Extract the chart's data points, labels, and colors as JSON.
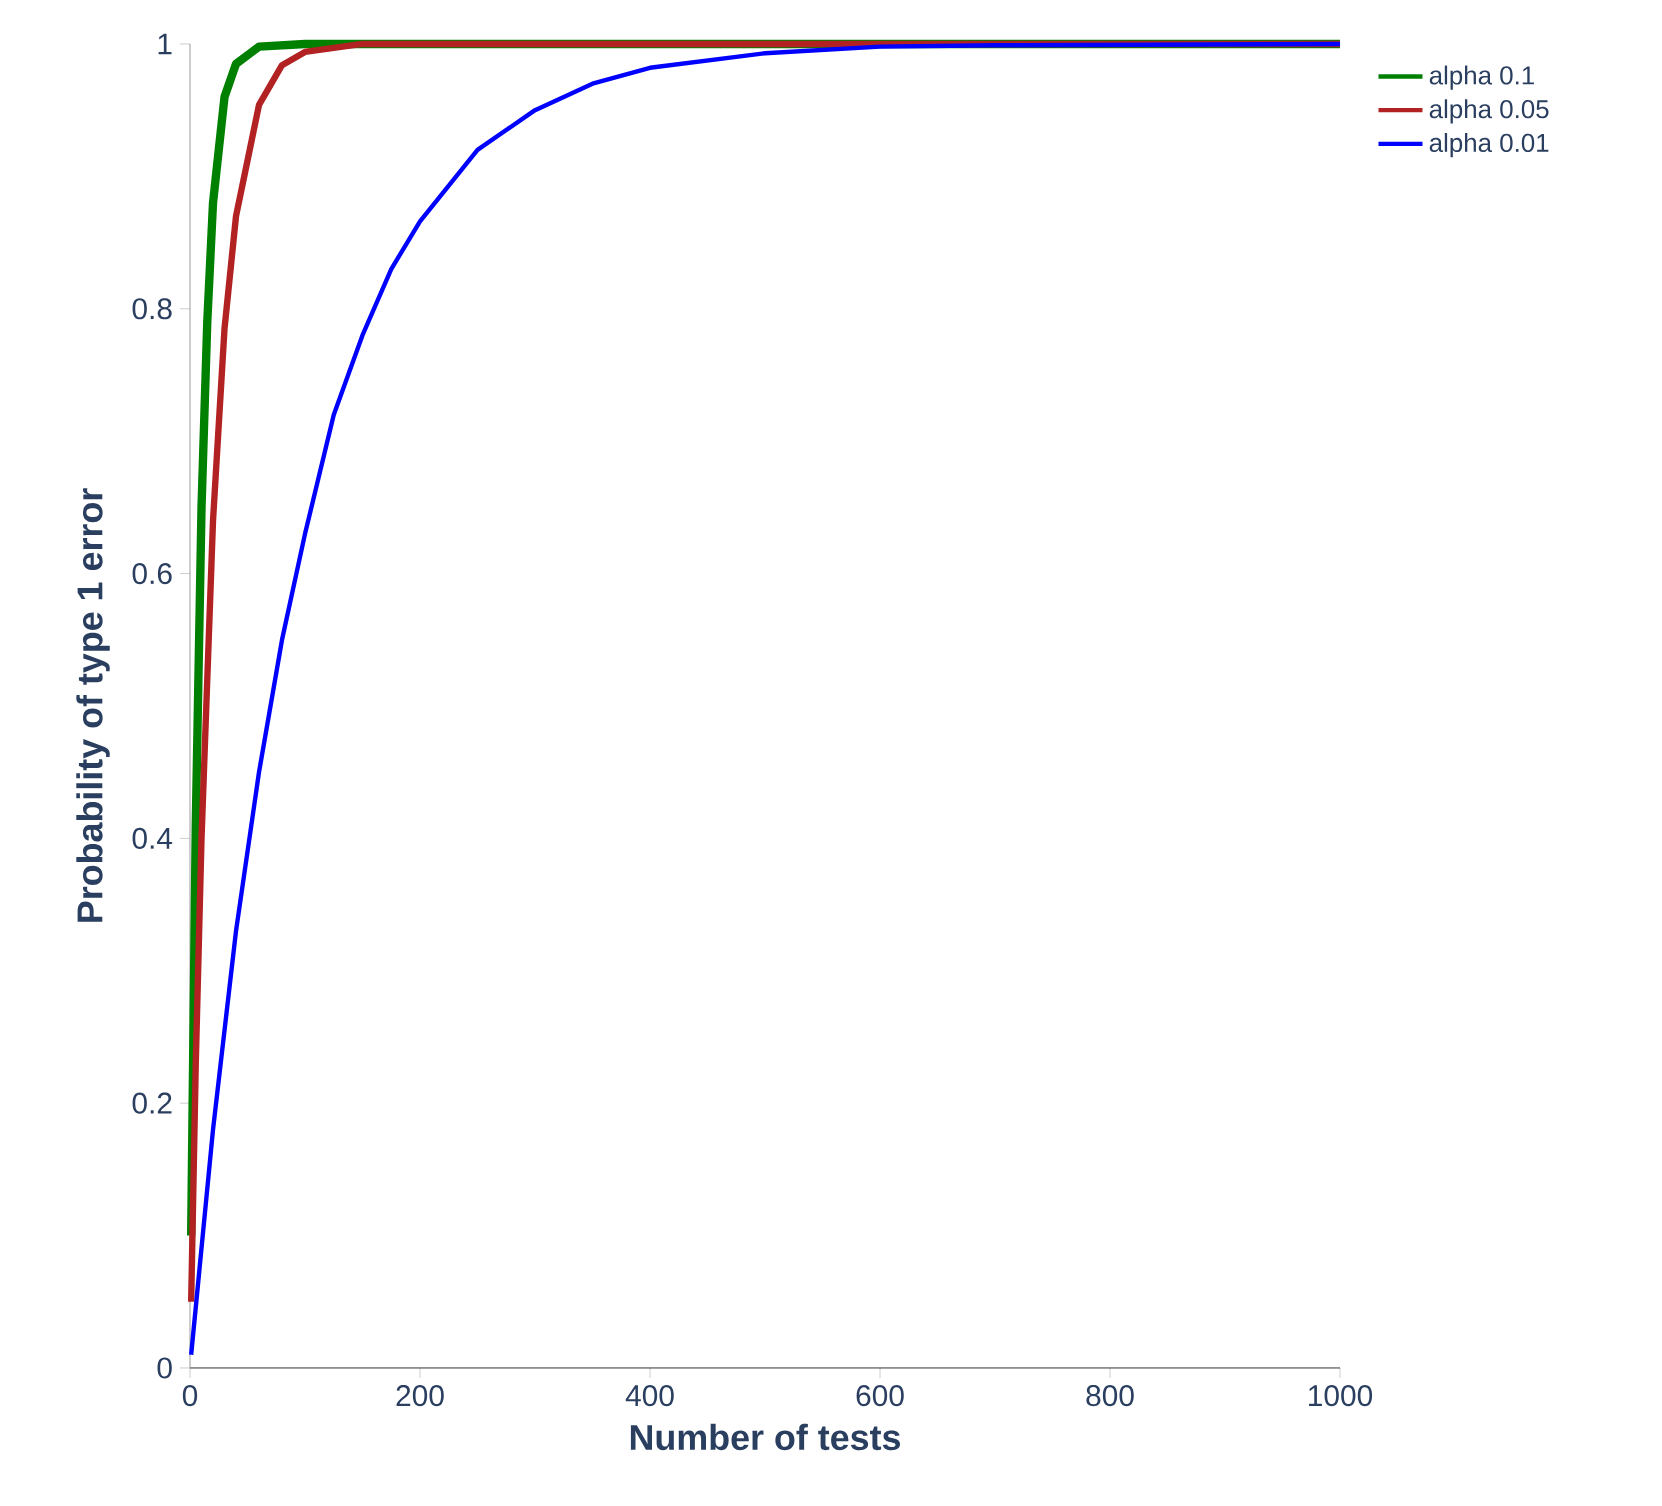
{
  "chart_data": {
    "type": "line",
    "xlabel": "Number of tests",
    "ylabel": "Probability of type 1 error",
    "xlim": [
      0,
      1000
    ],
    "ylim": [
      0,
      1
    ],
    "xticks": [
      0,
      200,
      400,
      600,
      800,
      1000
    ],
    "yticks": [
      0,
      0.2,
      0.4,
      0.6,
      0.8,
      1
    ],
    "legend": "top right",
    "line_style": "solid",
    "series": [
      {
        "name": "alpha 0.1",
        "color": "#008000",
        "x": [
          1,
          5,
          10,
          15,
          20,
          30,
          40,
          60,
          100,
          1000
        ],
        "values": [
          0.1,
          0.41,
          0.65,
          0.79,
          0.88,
          0.96,
          0.985,
          0.998,
          1,
          1
        ]
      },
      {
        "name": "alpha 0.05",
        "color": "#b22222",
        "x": [
          1,
          5,
          10,
          20,
          30,
          40,
          60,
          80,
          100,
          150,
          1000
        ],
        "values": [
          0.05,
          0.23,
          0.4,
          0.64,
          0.785,
          0.87,
          0.954,
          0.984,
          0.994,
          1,
          1
        ]
      },
      {
        "name": "alpha 0.01",
        "color": "#0000ff",
        "x": [
          1,
          20,
          40,
          60,
          80,
          100,
          125,
          150,
          175,
          200,
          250,
          300,
          350,
          400,
          500,
          600,
          700,
          1000
        ],
        "values": [
          0.01,
          0.18,
          0.33,
          0.45,
          0.55,
          0.63,
          0.72,
          0.78,
          0.83,
          0.866,
          0.92,
          0.95,
          0.97,
          0.982,
          0.993,
          0.998,
          0.999,
          1
        ]
      }
    ]
  }
}
